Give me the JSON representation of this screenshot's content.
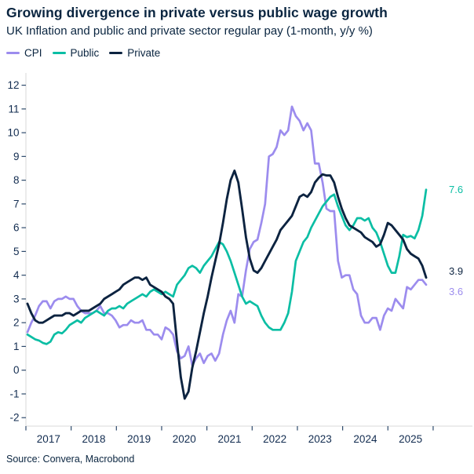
{
  "header": {
    "title": "Growing divergence in private versus public wage growth",
    "subtitle": "UK Inflation and public and private sector regular pay (1-month, y/y %)"
  },
  "legend": [
    {
      "label": "CPI",
      "color": "#9c8cee"
    },
    {
      "label": "Public",
      "color": "#0bbea4"
    },
    {
      "label": "Private",
      "color": "#0c2340"
    }
  ],
  "chart_data": {
    "type": "line",
    "title": "Growing divergence in private versus public wage growth",
    "subtitle": "UK Inflation and public and private sector regular pay (1-month, y/y %)",
    "frequency": "monthly",
    "x_range": "Jan 2017 - Sep 2025",
    "x_tick_labels": [
      "2017",
      "2018",
      "2019",
      "2020",
      "2021",
      "2022",
      "2023",
      "2024",
      "2025"
    ],
    "y_ticks": [
      -2,
      -1,
      0,
      1,
      2,
      3,
      4,
      5,
      6,
      7,
      8,
      9,
      10,
      11,
      12
    ],
    "ylim": [
      -2.4,
      12.5
    ],
    "grid": false,
    "legend_position": "top-left",
    "axis_color": "#d8d8d8",
    "tick_color": "#2e4a6b",
    "label_color": "#122c50",
    "series": [
      {
        "name": "CPI",
        "color": "#9c8cee",
        "end_label": "3.6",
        "values": [
          1.6,
          2.0,
          2.3,
          2.7,
          2.9,
          2.9,
          2.6,
          2.9,
          3.0,
          3.0,
          3.1,
          3.0,
          3.0,
          2.7,
          2.5,
          2.4,
          2.4,
          2.4,
          2.5,
          2.7,
          2.4,
          2.4,
          2.3,
          2.1,
          1.8,
          1.9,
          1.9,
          2.1,
          2.0,
          2.0,
          2.1,
          1.7,
          1.7,
          1.5,
          1.5,
          1.3,
          1.8,
          1.7,
          1.5,
          0.8,
          0.5,
          0.6,
          1.0,
          0.2,
          0.5,
          0.7,
          0.3,
          0.6,
          0.7,
          0.4,
          0.7,
          1.5,
          2.1,
          2.5,
          2.0,
          3.2,
          3.1,
          4.2,
          5.1,
          5.4,
          5.5,
          6.2,
          7.0,
          9.0,
          9.1,
          9.4,
          10.1,
          9.9,
          10.1,
          11.1,
          10.7,
          10.5,
          10.1,
          10.4,
          10.1,
          8.7,
          8.7,
          7.9,
          6.8,
          6.7,
          6.7,
          4.6,
          3.9,
          4.0,
          4.0,
          3.4,
          3.2,
          2.3,
          2.0,
          2.0,
          2.2,
          2.2,
          1.7,
          2.3,
          2.6,
          2.5,
          3.0,
          2.8,
          2.6,
          3.5,
          3.4,
          3.6,
          3.8,
          3.8,
          3.6
        ]
      },
      {
        "name": "Public",
        "color": "#0bbea4",
        "end_label": "7.6",
        "values": [
          1.5,
          1.4,
          1.3,
          1.25,
          1.15,
          1.1,
          1.2,
          1.5,
          1.6,
          1.55,
          1.7,
          1.9,
          2.0,
          2.1,
          2.0,
          2.2,
          2.3,
          2.4,
          2.5,
          2.4,
          2.3,
          2.5,
          2.6,
          2.6,
          2.7,
          2.6,
          2.8,
          2.9,
          3.0,
          3.1,
          3.2,
          3.1,
          3.3,
          3.4,
          3.3,
          3.2,
          3.3,
          3.2,
          3.1,
          3.6,
          3.8,
          4.0,
          4.3,
          4.4,
          4.3,
          4.1,
          4.4,
          4.6,
          4.8,
          5.1,
          5.4,
          5.3,
          5.0,
          4.6,
          4.1,
          3.6,
          3.1,
          2.8,
          2.9,
          2.8,
          2.7,
          2.3,
          2.0,
          1.8,
          1.7,
          1.7,
          1.7,
          2.0,
          2.4,
          3.3,
          4.6,
          5.0,
          5.4,
          5.6,
          6.0,
          6.3,
          6.6,
          6.9,
          7.1,
          7.3,
          7.4,
          6.9,
          6.5,
          6.1,
          5.9,
          6.1,
          6.4,
          6.4,
          6.3,
          6.4,
          6.0,
          5.8,
          5.4,
          4.9,
          4.4,
          4.1,
          4.1,
          4.8,
          5.7,
          5.6,
          5.65,
          5.55,
          5.9,
          6.5,
          7.6
        ]
      },
      {
        "name": "Private",
        "color": "#0c2340",
        "end_label": "3.9",
        "values": [
          2.8,
          2.4,
          2.1,
          2.0,
          2.0,
          2.1,
          2.2,
          2.3,
          2.3,
          2.3,
          2.4,
          2.4,
          2.3,
          2.4,
          2.5,
          2.5,
          2.5,
          2.6,
          2.7,
          2.8,
          3.0,
          3.1,
          3.2,
          3.3,
          3.4,
          3.6,
          3.7,
          3.8,
          3.9,
          3.9,
          3.8,
          3.9,
          3.6,
          3.5,
          3.4,
          3.3,
          3.1,
          3.0,
          2.8,
          1.2,
          -0.3,
          -1.2,
          -0.9,
          0.1,
          0.8,
          1.6,
          2.4,
          3.1,
          3.9,
          4.6,
          5.3,
          6.2,
          7.2,
          8.0,
          8.4,
          7.9,
          6.8,
          5.6,
          4.7,
          4.2,
          4.1,
          4.3,
          4.6,
          4.9,
          5.2,
          5.5,
          5.9,
          6.1,
          6.3,
          6.5,
          6.9,
          7.3,
          7.4,
          7.3,
          7.5,
          7.9,
          8.1,
          8.25,
          8.2,
          8.2,
          7.9,
          7.3,
          6.8,
          6.4,
          6.1,
          6.0,
          5.9,
          5.8,
          5.6,
          5.5,
          5.4,
          5.2,
          5.3,
          5.7,
          6.2,
          6.1,
          5.9,
          5.7,
          5.5,
          5.1,
          4.9,
          4.8,
          4.7,
          4.4,
          3.9
        ]
      }
    ]
  },
  "footer": {
    "source": "Source: Convera, Macrobond"
  }
}
